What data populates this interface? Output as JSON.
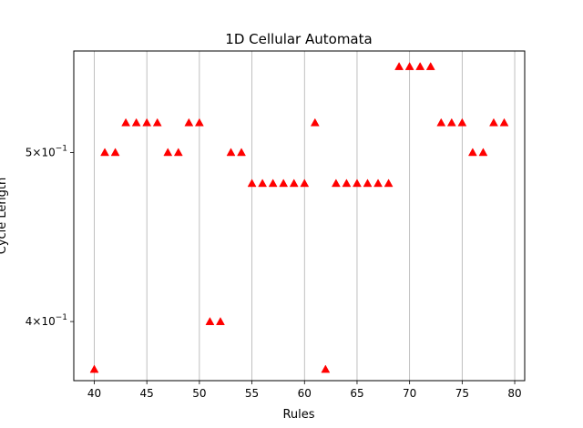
{
  "chart_data": {
    "type": "scatter",
    "title": "1D Cellular Automata",
    "xlabel": "Rules",
    "ylabel": "Cycle Length",
    "xlim": [
      38.05,
      80.95
    ],
    "ylim": [
      0.37,
      0.5716
    ],
    "yscale": "log",
    "grid": "vertical lines at x ticks",
    "marker": "triangle-up",
    "color": "#ff0000",
    "x_ticks": [
      {
        "value": 40,
        "label": "40"
      },
      {
        "value": 45,
        "label": "45"
      },
      {
        "value": 50,
        "label": "50"
      },
      {
        "value": 55,
        "label": "55"
      },
      {
        "value": 60,
        "label": "60"
      },
      {
        "value": 65,
        "label": "65"
      },
      {
        "value": 70,
        "label": "70"
      },
      {
        "value": 75,
        "label": "75"
      },
      {
        "value": 80,
        "label": "80"
      }
    ],
    "y_ticks": [
      {
        "value": 0.4,
        "base": "4",
        "exp": "−1"
      },
      {
        "value": 0.5,
        "base": "5",
        "exp": "−1"
      }
    ],
    "x": [
      40,
      41,
      42,
      43,
      44,
      45,
      46,
      47,
      48,
      49,
      50,
      51,
      52,
      53,
      54,
      55,
      56,
      57,
      58,
      59,
      60,
      61,
      62,
      63,
      64,
      65,
      66,
      67,
      68,
      69,
      70,
      71,
      72,
      73,
      74,
      75,
      76,
      77,
      78,
      79
    ],
    "y": [
      0.3756,
      0.5,
      0.5,
      0.52,
      0.52,
      0.52,
      0.52,
      0.5,
      0.5,
      0.52,
      0.52,
      0.4,
      0.4,
      0.5,
      0.5,
      0.48,
      0.48,
      0.48,
      0.48,
      0.48,
      0.48,
      0.52,
      0.3756,
      0.48,
      0.48,
      0.48,
      0.48,
      0.48,
      0.48,
      0.56,
      0.56,
      0.56,
      0.56,
      0.52,
      0.52,
      0.52,
      0.5,
      0.5,
      0.52,
      0.52
    ]
  }
}
